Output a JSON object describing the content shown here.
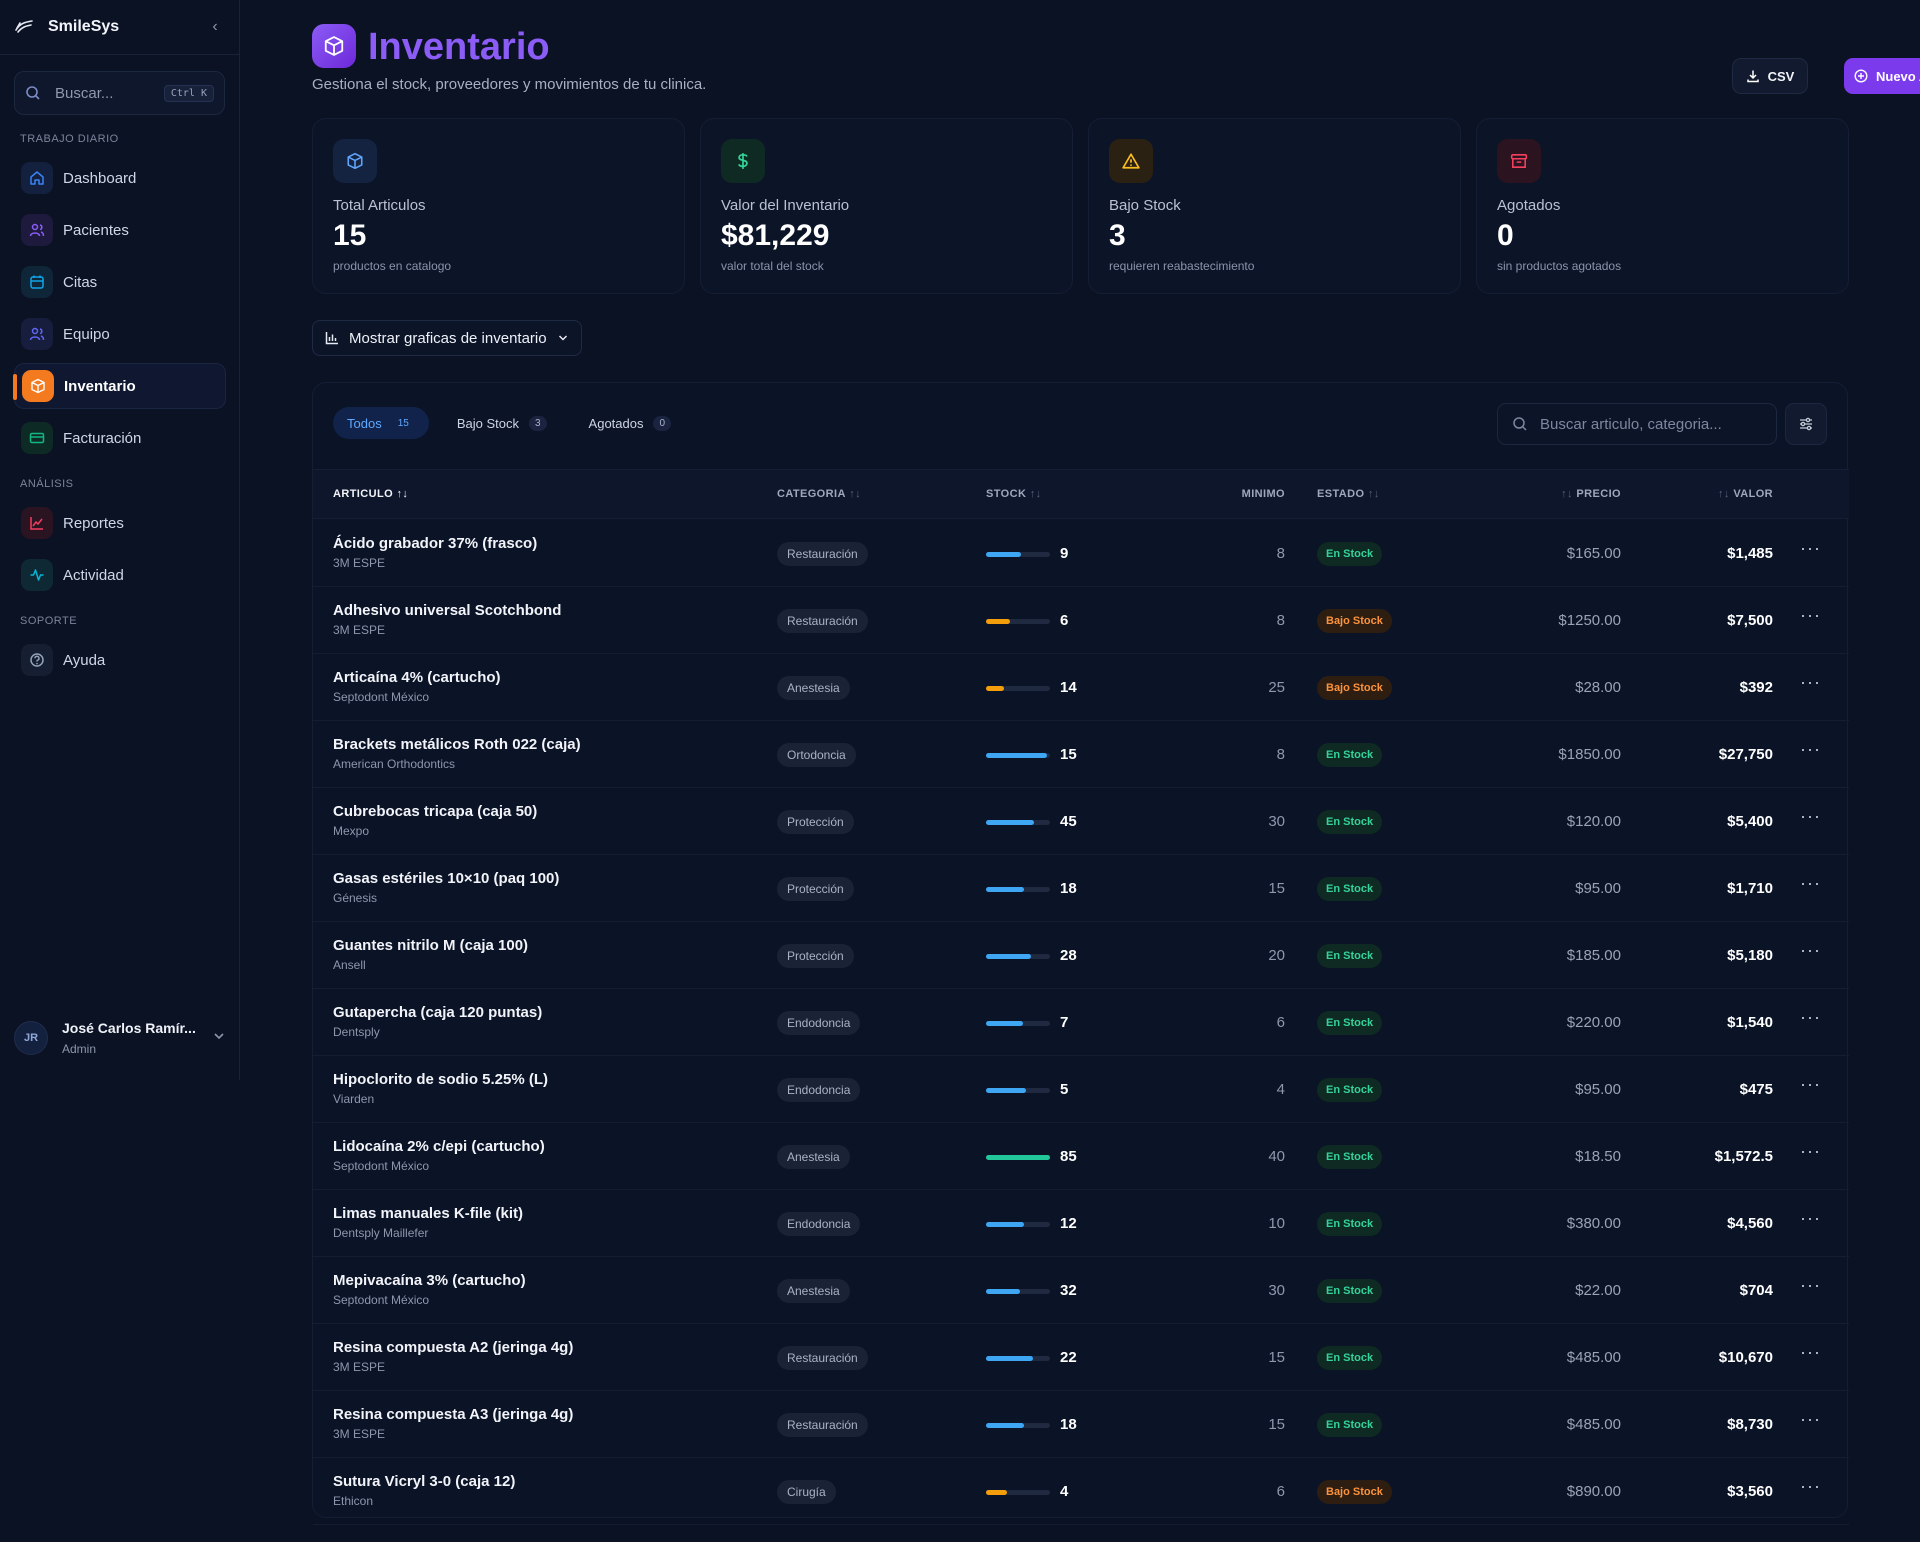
{
  "sidebar": {
    "brand": "SmileSys",
    "search_placeholder": "Buscar...",
    "search_shortcut": "Ctrl K",
    "sections": {
      "daily": "TRABAJO DIARIO",
      "analysis": "ANÁLISIS",
      "support": "SOPORTE"
    },
    "items": [
      {
        "label": "Dashboard",
        "icon": "home-icon",
        "color": "#3b82f6"
      },
      {
        "label": "Pacientes",
        "icon": "users-icon",
        "color": "#8b5cf6"
      },
      {
        "label": "Citas",
        "icon": "calendar-icon",
        "color": "#0ea5e9"
      },
      {
        "label": "Equipo",
        "icon": "team-icon",
        "color": "#6366f1"
      },
      {
        "label": "Inventario",
        "icon": "package-icon",
        "color": "#f47a1f"
      },
      {
        "label": "Facturación",
        "icon": "card-icon",
        "color": "#10b981"
      },
      {
        "label": "Reportes",
        "icon": "chart-line-icon",
        "color": "#f43f5e"
      },
      {
        "label": "Actividad",
        "icon": "activity-icon",
        "color": "#06b6d4"
      },
      {
        "label": "Ayuda",
        "icon": "help-icon",
        "color": "#94a3b8"
      }
    ],
    "user": {
      "initials": "JR",
      "name": "José Carlos Ramír...",
      "role": "Admin"
    }
  },
  "header": {
    "title": "Inventario",
    "subtitle": "Gestiona el stock, proveedores y movimientos de tu clinica.",
    "csv_label": "CSV",
    "new_label": "Nuevo Articulo"
  },
  "stats": [
    {
      "label": "Total Articulos",
      "value": "15",
      "sub": "productos en catalogo",
      "icon": "box-icon",
      "color": "#60a5fa"
    },
    {
      "label": "Valor del Inventario",
      "value": "$81,229",
      "sub": "valor total del stock",
      "icon": "dollar-icon",
      "color": "#34d399"
    },
    {
      "label": "Bajo Stock",
      "value": "3",
      "sub": "requieren reabastecimiento",
      "icon": "warning-icon",
      "color": "#fbbf24"
    },
    {
      "label": "Agotados",
      "value": "0",
      "sub": "sin productos agotados",
      "icon": "archive-icon",
      "color": "#f43f5e"
    }
  ],
  "chart_toggle": "Mostrar graficas de inventario",
  "tabs": [
    {
      "label": "Todos",
      "count": "15"
    },
    {
      "label": "Bajo Stock",
      "count": "3"
    },
    {
      "label": "Agotados",
      "count": "0"
    }
  ],
  "table_search_placeholder": "Buscar articulo, categoria...",
  "columns": {
    "articulo": "ARTICULO",
    "categoria": "CATEGORIA",
    "stock": "STOCK",
    "minimo": "MINIMO",
    "estado": "ESTADO",
    "precio": "PRECIO",
    "valor": "VALOR"
  },
  "rows": [
    {
      "name": "Ácido grabador 37% (frasco)",
      "supplier": "3M ESPE",
      "category": "Restauración",
      "stock": "9",
      "fill": 0.55,
      "barcolor": "#3ea6f2",
      "min": "8",
      "status": "En Stock",
      "ok": true,
      "price": "$165.00",
      "value": "$1,485"
    },
    {
      "name": "Adhesivo universal Scotchbond",
      "supplier": "3M ESPE",
      "category": "Restauración",
      "stock": "6",
      "fill": 0.38,
      "barcolor": "#f59e0b",
      "min": "8",
      "status": "Bajo Stock",
      "ok": false,
      "price": "$1250.00",
      "value": "$7,500"
    },
    {
      "name": "Articaína 4% (cartucho)",
      "supplier": "Septodont México",
      "category": "Anestesia",
      "stock": "14",
      "fill": 0.28,
      "barcolor": "#f59e0b",
      "min": "25",
      "status": "Bajo Stock",
      "ok": false,
      "price": "$28.00",
      "value": "$392"
    },
    {
      "name": "Brackets metálicos Roth 022 (caja)",
      "supplier": "American Orthodontics",
      "category": "Ortodoncia",
      "stock": "15",
      "fill": 0.95,
      "barcolor": "#3ea6f2",
      "min": "8",
      "status": "En Stock",
      "ok": true,
      "price": "$1850.00",
      "value": "$27,750"
    },
    {
      "name": "Cubrebocas tricapa (caja 50)",
      "supplier": "Mexpo",
      "category": "Protección",
      "stock": "45",
      "fill": 0.75,
      "barcolor": "#3ea6f2",
      "min": "30",
      "status": "En Stock",
      "ok": true,
      "price": "$120.00",
      "value": "$5,400"
    },
    {
      "name": "Gasas estériles 10×10 (paq 100)",
      "supplier": "Génesis",
      "category": "Protección",
      "stock": "18",
      "fill": 0.6,
      "barcolor": "#3ea6f2",
      "min": "15",
      "status": "En Stock",
      "ok": true,
      "price": "$95.00",
      "value": "$1,710"
    },
    {
      "name": "Guantes nitrilo M (caja 100)",
      "supplier": "Ansell",
      "category": "Protección",
      "stock": "28",
      "fill": 0.7,
      "barcolor": "#3ea6f2",
      "min": "20",
      "status": "En Stock",
      "ok": true,
      "price": "$185.00",
      "value": "$5,180"
    },
    {
      "name": "Gutapercha (caja 120 puntas)",
      "supplier": "Dentsply",
      "category": "Endodoncia",
      "stock": "7",
      "fill": 0.58,
      "barcolor": "#3ea6f2",
      "min": "6",
      "status": "En Stock",
      "ok": true,
      "price": "$220.00",
      "value": "$1,540"
    },
    {
      "name": "Hipoclorito de sodio 5.25% (L)",
      "supplier": "Viarden",
      "category": "Endodoncia",
      "stock": "5",
      "fill": 0.62,
      "barcolor": "#3ea6f2",
      "min": "4",
      "status": "En Stock",
      "ok": true,
      "price": "$95.00",
      "value": "$475"
    },
    {
      "name": "Lidocaína 2% c/epi (cartucho)",
      "supplier": "Septodont México",
      "category": "Anestesia",
      "stock": "85",
      "fill": 1.0,
      "barcolor": "#22c79a",
      "min": "40",
      "status": "En Stock",
      "ok": true,
      "price": "$18.50",
      "value": "$1,572.5"
    },
    {
      "name": "Limas manuales K-file (kit)",
      "supplier": "Dentsply Maillefer",
      "category": "Endodoncia",
      "stock": "12",
      "fill": 0.6,
      "barcolor": "#3ea6f2",
      "min": "10",
      "status": "En Stock",
      "ok": true,
      "price": "$380.00",
      "value": "$4,560"
    },
    {
      "name": "Mepivacaína 3% (cartucho)",
      "supplier": "Septodont México",
      "category": "Anestesia",
      "stock": "32",
      "fill": 0.53,
      "barcolor": "#3ea6f2",
      "min": "30",
      "status": "En Stock",
      "ok": true,
      "price": "$22.00",
      "value": "$704"
    },
    {
      "name": "Resina compuesta A2 (jeringa 4g)",
      "supplier": "3M ESPE",
      "category": "Restauración",
      "stock": "22",
      "fill": 0.73,
      "barcolor": "#3ea6f2",
      "min": "15",
      "status": "En Stock",
      "ok": true,
      "price": "$485.00",
      "value": "$10,670"
    },
    {
      "name": "Resina compuesta A3 (jeringa 4g)",
      "supplier": "3M ESPE",
      "category": "Restauración",
      "stock": "18",
      "fill": 0.6,
      "barcolor": "#3ea6f2",
      "min": "15",
      "status": "En Stock",
      "ok": true,
      "price": "$485.00",
      "value": "$8,730"
    },
    {
      "name": "Sutura Vicryl 3-0 (caja 12)",
      "supplier": "Ethicon",
      "category": "Cirugía",
      "stock": "4",
      "fill": 0.33,
      "barcolor": "#f59e0b",
      "min": "6",
      "status": "Bajo Stock",
      "ok": false,
      "price": "$890.00",
      "value": "$3,560"
    }
  ]
}
